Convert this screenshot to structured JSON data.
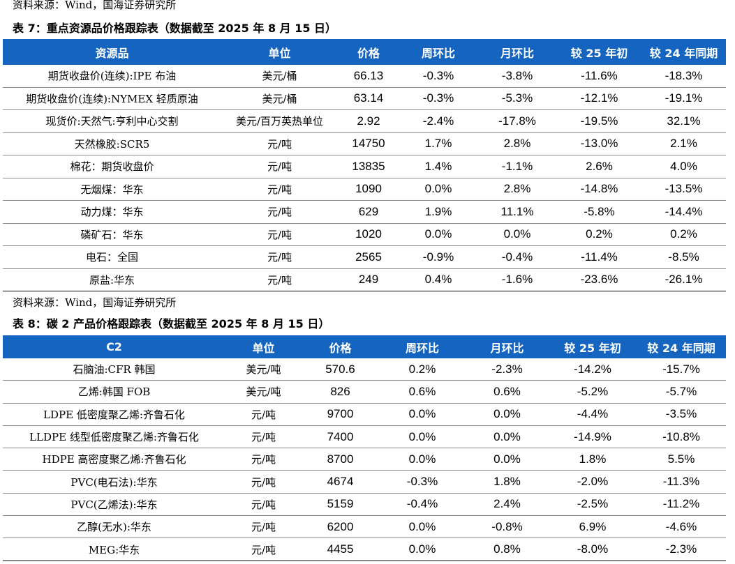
{
  "source_top": "资料来源：Wind，国海证券研究所",
  "table1": {
    "caption": "表 7：重点资源品价格跟踪表（数据截至 2025 年 8 月 15 日）",
    "headers": [
      "资源品",
      "单位",
      "价格",
      "周环比",
      "月环比",
      "较 25 年初",
      "较 24 年同期"
    ],
    "rows": [
      [
        "期货收盘价(连续):IPE 布油",
        "美元/桶",
        "66.13",
        "-0.3%",
        "-3.8%",
        "-11.6%",
        "-18.3%"
      ],
      [
        "期货收盘价(连续):NYMEX 轻质原油",
        "美元/桶",
        "63.14",
        "-0.3%",
        "-5.3%",
        "-12.1%",
        "-19.1%"
      ],
      [
        "现货价:天然气:亨利中心交割",
        "美元/百万英热单位",
        "2.92",
        "-2.4%",
        "-17.8%",
        "-19.5%",
        "32.1%"
      ],
      [
        "天然橡胶:SCR5",
        "元/吨",
        "14750",
        "1.7%",
        "2.8%",
        "-13.0%",
        "2.1%"
      ],
      [
        "棉花：期货收盘价",
        "元/吨",
        "13835",
        "1.4%",
        "-1.1%",
        "2.6%",
        "4.0%"
      ],
      [
        "无烟煤：华东",
        "元/吨",
        "1090",
        "0.0%",
        "2.8%",
        "-14.8%",
        "-13.5%"
      ],
      [
        "动力煤：华东",
        "元/吨",
        "629",
        "1.9%",
        "11.1%",
        "-5.8%",
        "-14.4%"
      ],
      [
        "磷矿石：华东",
        "元/吨",
        "1020",
        "0.0%",
        "0.0%",
        "0.2%",
        "0.2%"
      ],
      [
        "电石：全国",
        "元/吨",
        "2565",
        "-0.9%",
        "-0.4%",
        "-11.4%",
        "-8.5%"
      ],
      [
        "原盐:华东",
        "元/吨",
        "249",
        "0.4%",
        "-1.6%",
        "-23.6%",
        "-26.1%"
      ]
    ]
  },
  "source_mid": "资料来源：Wind，国海证券研究所",
  "table2": {
    "caption": "表 8：碳 2 产品价格跟踪表（数据截至 2025 年 8 月 15 日）",
    "headers": [
      "C2",
      "单位",
      "价格",
      "周环比",
      "月环比",
      "较 25 年初",
      "较 24 年同期"
    ],
    "rows": [
      [
        "石脑油:CFR 韩国",
        "美元/吨",
        "570.6",
        "0.2%",
        "-2.3%",
        "-14.2%",
        "-15.7%"
      ],
      [
        "乙烯:韩国 FOB",
        "美元/吨",
        "826",
        "0.6%",
        "0.6%",
        "-5.2%",
        "-5.7%"
      ],
      [
        "LDPE 低密度聚乙烯:齐鲁石化",
        "元/吨",
        "9700",
        "0.0%",
        "0.0%",
        "-4.4%",
        "-3.5%"
      ],
      [
        "LLDPE 线型低密度聚乙烯:齐鲁石化",
        "元/吨",
        "7400",
        "0.0%",
        "0.0%",
        "-14.9%",
        "-10.8%"
      ],
      [
        "HDPE 高密度聚乙烯:齐鲁石化",
        "元/吨",
        "8700",
        "0.0%",
        "0.0%",
        "1.8%",
        "5.5%"
      ],
      [
        "PVC(电石法):华东",
        "元/吨",
        "4674",
        "-0.3%",
        "1.8%",
        "-2.0%",
        "-11.3%"
      ],
      [
        "PVC(乙烯法):华东",
        "元/吨",
        "5159",
        "-0.4%",
        "2.4%",
        "-2.5%",
        "-11.2%"
      ],
      [
        "乙醇(无水):华东",
        "元/吨",
        "6200",
        "0.0%",
        "-0.8%",
        "6.9%",
        "-4.6%"
      ],
      [
        "MEG:华东",
        "元/吨",
        "4455",
        "0.0%",
        "0.8%",
        "-8.0%",
        "-2.3%"
      ]
    ]
  },
  "colors": {
    "header_bg": "#1565c0",
    "header_text": "#ffffff",
    "rule": "#8c8c8c"
  }
}
